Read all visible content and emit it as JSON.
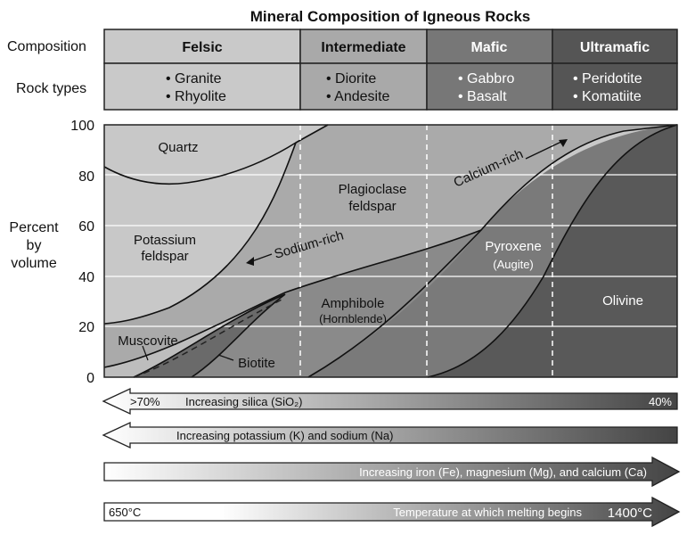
{
  "title": "Mineral Composition of Igneous Rocks",
  "row_labels": {
    "composition": "Composition",
    "rock_types": "Rock types"
  },
  "columns": [
    {
      "name": "Felsic",
      "rocks": [
        "• Granite",
        "• Rhyolite"
      ],
      "header_color": "#c9c9c9",
      "rock_color": "#c9c9c9",
      "header_text_color": "#111111",
      "rock_text_color": "#111111"
    },
    {
      "name": "Intermediate",
      "rocks": [
        "• Diorite",
        "• Andesite"
      ],
      "header_color": "#a9a9a9",
      "rock_color": "#a9a9a9",
      "header_text_color": "#111111",
      "rock_text_color": "#111111"
    },
    {
      "name": "Mafic",
      "rocks": [
        "• Gabbro",
        "• Basalt"
      ],
      "header_color": "#777777",
      "rock_color": "#777777",
      "header_text_color": "#ffffff",
      "rock_text_color": "#ffffff"
    },
    {
      "name": "Ultramafic",
      "rocks": [
        "• Peridotite",
        "• Komatiite"
      ],
      "header_color": "#555555",
      "rock_color": "#555555",
      "header_text_color": "#ffffff",
      "rock_text_color": "#ffffff"
    }
  ],
  "axis": {
    "label_lines": [
      "Percent",
      "by",
      "volume"
    ],
    "ticks": [
      "100",
      "80",
      "60",
      "40",
      "20",
      "0"
    ]
  },
  "minerals": {
    "quartz": "Quartz",
    "potassium_feldspar": [
      "Potassium",
      "feldspar"
    ],
    "plagioclase": [
      "Plagioclase",
      "feldspar"
    ],
    "sodium_rich": "Sodium-rich",
    "calcium_rich": "Calcium-rich",
    "pyroxene": "Pyroxene",
    "pyroxene_sub": "(Augite)",
    "amphibole": "Amphibole",
    "amphibole_sub": "(Hornblende)",
    "muscovite": "Muscovite",
    "biotite": "Biotite",
    "olivine": "Olivine"
  },
  "arrows": {
    "silica": {
      "label": "Increasing silica (SiO₂)",
      "left": ">70%",
      "right": "40%"
    },
    "potassium": {
      "label": "Increasing potassium (K) and sodium (Na)"
    },
    "iron": {
      "label": "Increasing iron (Fe), magnesium (Mg), and calcium (Ca)"
    },
    "temperature": {
      "label": "Temperature at which melting begins",
      "left": "650°C",
      "right": "1400°C"
    }
  },
  "colors": {
    "quartz": "#c8c8c8",
    "potassium_feldspar": "#c8c8c8",
    "plagioclase": "#a9a9a9",
    "muscovite": "#bdbdbd",
    "biotite": "#6a6a6a",
    "amphibole": "#8a8a8a",
    "pyroxene": "#7a7a7a",
    "olivine": "#595959"
  }
}
